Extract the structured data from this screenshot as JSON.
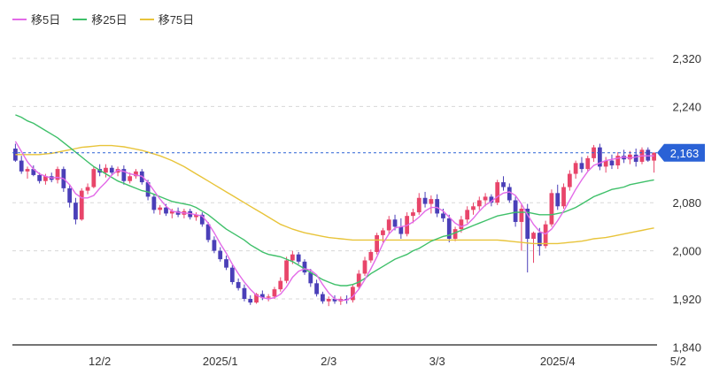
{
  "chart_data": {
    "type": "candlestick",
    "legend": [
      {
        "name": "移5日",
        "color": "#e36be8"
      },
      {
        "name": "移25日",
        "color": "#3fc06a"
      },
      {
        "name": "移75日",
        "color": "#e8c43a"
      }
    ],
    "x_ticks": [
      "12/2",
      "2025/1",
      "2/3",
      "3/3",
      "2025/4",
      "5/2"
    ],
    "y_ticks": [
      "2,320",
      "2,240",
      "2,080",
      "2,000",
      "1,920",
      "1,840"
    ],
    "y_tick_values": [
      2320,
      2240,
      2080,
      2000,
      1920,
      1840
    ],
    "ylim": [
      1840,
      2340
    ],
    "last_price_label": "2,163",
    "last_price": 2163,
    "colors": {
      "up": "#e8456a",
      "down": "#4a3fb8",
      "price_tag": "#2a62d6"
    },
    "x_tick_index": [
      14,
      34,
      52,
      70,
      90,
      110
    ],
    "candles": [
      [
        2170,
        2178,
        2148,
        2150
      ],
      [
        2150,
        2158,
        2128,
        2132
      ],
      [
        2132,
        2140,
        2120,
        2136
      ],
      [
        2136,
        2142,
        2124,
        2126
      ],
      [
        2126,
        2130,
        2112,
        2116
      ],
      [
        2116,
        2128,
        2110,
        2124
      ],
      [
        2124,
        2130,
        2114,
        2118
      ],
      [
        2118,
        2140,
        2112,
        2136
      ],
      [
        2136,
        2140,
        2098,
        2104
      ],
      [
        2104,
        2110,
        2072,
        2080
      ],
      [
        2080,
        2088,
        2044,
        2052
      ],
      [
        2052,
        2104,
        2050,
        2100
      ],
      [
        2100,
        2112,
        2094,
        2106
      ],
      [
        2106,
        2140,
        2104,
        2136
      ],
      [
        2136,
        2144,
        2124,
        2130
      ],
      [
        2130,
        2144,
        2122,
        2138
      ],
      [
        2138,
        2142,
        2126,
        2130
      ],
      [
        2130,
        2140,
        2124,
        2136
      ],
      [
        2136,
        2142,
        2110,
        2116
      ],
      [
        2116,
        2130,
        2112,
        2124
      ],
      [
        2124,
        2136,
        2120,
        2132
      ],
      [
        2132,
        2136,
        2110,
        2114
      ],
      [
        2114,
        2118,
        2084,
        2090
      ],
      [
        2090,
        2094,
        2062,
        2068
      ],
      [
        2068,
        2076,
        2060,
        2072
      ],
      [
        2072,
        2078,
        2058,
        2062
      ],
      [
        2062,
        2070,
        2054,
        2066
      ],
      [
        2066,
        2072,
        2056,
        2060
      ],
      [
        2060,
        2070,
        2054,
        2066
      ],
      [
        2066,
        2070,
        2052,
        2056
      ],
      [
        2056,
        2064,
        2050,
        2060
      ],
      [
        2060,
        2064,
        2040,
        2044
      ],
      [
        2044,
        2048,
        2014,
        2018
      ],
      [
        2018,
        2024,
        1996,
        2000
      ],
      [
        2000,
        2006,
        1982,
        1986
      ],
      [
        1986,
        1992,
        1968,
        1972
      ],
      [
        1972,
        1976,
        1944,
        1948
      ],
      [
        1948,
        1954,
        1934,
        1938
      ],
      [
        1938,
        1944,
        1916,
        1920
      ],
      [
        1920,
        1926,
        1910,
        1914
      ],
      [
        1914,
        1930,
        1912,
        1928
      ],
      [
        1928,
        1934,
        1918,
        1922
      ],
      [
        1922,
        1928,
        1916,
        1924
      ],
      [
        1924,
        1940,
        1920,
        1936
      ],
      [
        1936,
        1956,
        1932,
        1950
      ],
      [
        1950,
        1990,
        1946,
        1984
      ],
      [
        1984,
        2000,
        1978,
        1994
      ],
      [
        1994,
        1998,
        1978,
        1982
      ],
      [
        1982,
        1986,
        1960,
        1964
      ],
      [
        1964,
        1970,
        1940,
        1946
      ],
      [
        1946,
        1952,
        1924,
        1928
      ],
      [
        1928,
        1932,
        1912,
        1916
      ],
      [
        1916,
        1924,
        1908,
        1920
      ],
      [
        1920,
        1926,
        1912,
        1916
      ],
      [
        1916,
        1924,
        1910,
        1920
      ],
      [
        1920,
        1926,
        1912,
        1918
      ],
      [
        1918,
        1944,
        1914,
        1940
      ],
      [
        1940,
        1968,
        1936,
        1962
      ],
      [
        1962,
        1990,
        1958,
        1984
      ],
      [
        1984,
        2002,
        1980,
        1998
      ],
      [
        1998,
        2030,
        1994,
        2026
      ],
      [
        2026,
        2038,
        2014,
        2034
      ],
      [
        2034,
        2058,
        2028,
        2052
      ],
      [
        2052,
        2060,
        2034,
        2040
      ],
      [
        2040,
        2054,
        2020,
        2028
      ],
      [
        2028,
        2064,
        2024,
        2058
      ],
      [
        2058,
        2070,
        2046,
        2064
      ],
      [
        2064,
        2096,
        2060,
        2088
      ],
      [
        2088,
        2098,
        2072,
        2078
      ],
      [
        2078,
        2092,
        2062,
        2086
      ],
      [
        2086,
        2094,
        2056,
        2062
      ],
      [
        2062,
        2070,
        2048,
        2054
      ],
      [
        2054,
        2060,
        2014,
        2020
      ],
      [
        2020,
        2040,
        2016,
        2036
      ],
      [
        2036,
        2058,
        2030,
        2052
      ],
      [
        2052,
        2074,
        2046,
        2068
      ],
      [
        2068,
        2080,
        2060,
        2074
      ],
      [
        2074,
        2090,
        2068,
        2084
      ],
      [
        2084,
        2096,
        2074,
        2090
      ],
      [
        2090,
        2094,
        2074,
        2080
      ],
      [
        2080,
        2118,
        2076,
        2114
      ],
      [
        2114,
        2124,
        2100,
        2106
      ],
      [
        2106,
        2112,
        2080,
        2084
      ],
      [
        2084,
        2090,
        2040,
        2048
      ],
      [
        2048,
        2078,
        2000,
        2070
      ],
      [
        2070,
        2078,
        1964,
        2020
      ],
      [
        2020,
        2032,
        1980,
        2030
      ],
      [
        2030,
        2038,
        1992,
        2008
      ],
      [
        2008,
        2050,
        2004,
        2044
      ],
      [
        2044,
        2102,
        2040,
        2096
      ],
      [
        2096,
        2110,
        2068,
        2074
      ],
      [
        2074,
        2112,
        2070,
        2106
      ],
      [
        2106,
        2134,
        2100,
        2128
      ],
      [
        2128,
        2150,
        2120,
        2146
      ],
      [
        2146,
        2156,
        2130,
        2136
      ],
      [
        2136,
        2158,
        2132,
        2154
      ],
      [
        2154,
        2176,
        2148,
        2172
      ],
      [
        2172,
        2178,
        2134,
        2140
      ],
      [
        2140,
        2156,
        2130,
        2150
      ],
      [
        2150,
        2160,
        2136,
        2142
      ],
      [
        2142,
        2164,
        2136,
        2158
      ],
      [
        2158,
        2168,
        2146,
        2152
      ],
      [
        2152,
        2166,
        2144,
        2160
      ],
      [
        2160,
        2170,
        2140,
        2148
      ],
      [
        2148,
        2172,
        2144,
        2168
      ],
      [
        2168,
        2172,
        2148,
        2150
      ],
      [
        2150,
        2164,
        2130,
        2163
      ]
    ],
    "ma5": [
      2182,
      2165,
      2148,
      2136,
      2128,
      2124,
      2121,
      2122,
      2120,
      2110,
      2095,
      2088,
      2088,
      2092,
      2104,
      2114,
      2126,
      2134,
      2132,
      2128,
      2126,
      2124,
      2114,
      2100,
      2086,
      2074,
      2066,
      2064,
      2063,
      2062,
      2060,
      2058,
      2046,
      2030,
      2012,
      1996,
      1978,
      1962,
      1948,
      1936,
      1926,
      1922,
      1920,
      1922,
      1928,
      1940,
      1956,
      1966,
      1970,
      1968,
      1960,
      1944,
      1930,
      1920,
      1918,
      1918,
      1924,
      1936,
      1952,
      1970,
      1990,
      2012,
      2028,
      2038,
      2040,
      2042,
      2048,
      2056,
      2066,
      2072,
      2072,
      2066,
      2056,
      2046,
      2040,
      2044,
      2054,
      2066,
      2076,
      2082,
      2090,
      2096,
      2098,
      2092,
      2078,
      2060,
      2044,
      2032,
      2028,
      2036,
      2050,
      2066,
      2084,
      2102,
      2118,
      2132,
      2142,
      2146,
      2150,
      2152,
      2154,
      2156,
      2154,
      2156,
      2158,
      2158,
      2158
    ],
    "ma25": [
      2226,
      2222,
      2216,
      2212,
      2206,
      2200,
      2194,
      2188,
      2180,
      2172,
      2164,
      2156,
      2148,
      2140,
      2134,
      2128,
      2122,
      2116,
      2112,
      2108,
      2104,
      2100,
      2098,
      2094,
      2090,
      2086,
      2082,
      2080,
      2078,
      2076,
      2072,
      2066,
      2060,
      2052,
      2044,
      2036,
      2030,
      2024,
      2018,
      2010,
      2004,
      1998,
      1994,
      1992,
      1990,
      1986,
      1982,
      1976,
      1970,
      1964,
      1958,
      1952,
      1948,
      1944,
      1942,
      1942,
      1944,
      1948,
      1954,
      1962,
      1968,
      1974,
      1980,
      1986,
      1990,
      1994,
      2000,
      2004,
      2010,
      2016,
      2020,
      2024,
      2026,
      2030,
      2034,
      2038,
      2042,
      2046,
      2050,
      2054,
      2058,
      2060,
      2062,
      2064,
      2064,
      2064,
      2062,
      2060,
      2060,
      2060,
      2062,
      2064,
      2068,
      2072,
      2078,
      2084,
      2090,
      2094,
      2098,
      2102,
      2104,
      2106,
      2110,
      2112,
      2114,
      2116,
      2118
    ],
    "ma75": [
      2160,
      2160,
      2160,
      2160,
      2160,
      2161,
      2162,
      2164,
      2166,
      2168,
      2170,
      2172,
      2173,
      2174,
      2175,
      2175,
      2175,
      2174,
      2173,
      2171,
      2169,
      2167,
      2164,
      2161,
      2158,
      2154,
      2150,
      2145,
      2140,
      2134,
      2128,
      2122,
      2116,
      2110,
      2104,
      2098,
      2092,
      2086,
      2080,
      2074,
      2068,
      2062,
      2056,
      2050,
      2044,
      2040,
      2036,
      2033,
      2030,
      2028,
      2026,
      2024,
      2022,
      2021,
      2020,
      2019,
      2018,
      2018,
      2018,
      2018,
      2018,
      2018,
      2018,
      2018,
      2018,
      2018,
      2018,
      2018,
      2018,
      2018,
      2018,
      2018,
      2018,
      2018,
      2018,
      2018,
      2018,
      2018,
      2018,
      2018,
      2018,
      2017,
      2016,
      2015,
      2014,
      2013,
      2012,
      2012,
      2012,
      2012,
      2012,
      2013,
      2014,
      2015,
      2016,
      2018,
      2020,
      2021,
      2022,
      2024,
      2026,
      2028,
      2030,
      2032,
      2034,
      2036,
      2038
    ]
  }
}
